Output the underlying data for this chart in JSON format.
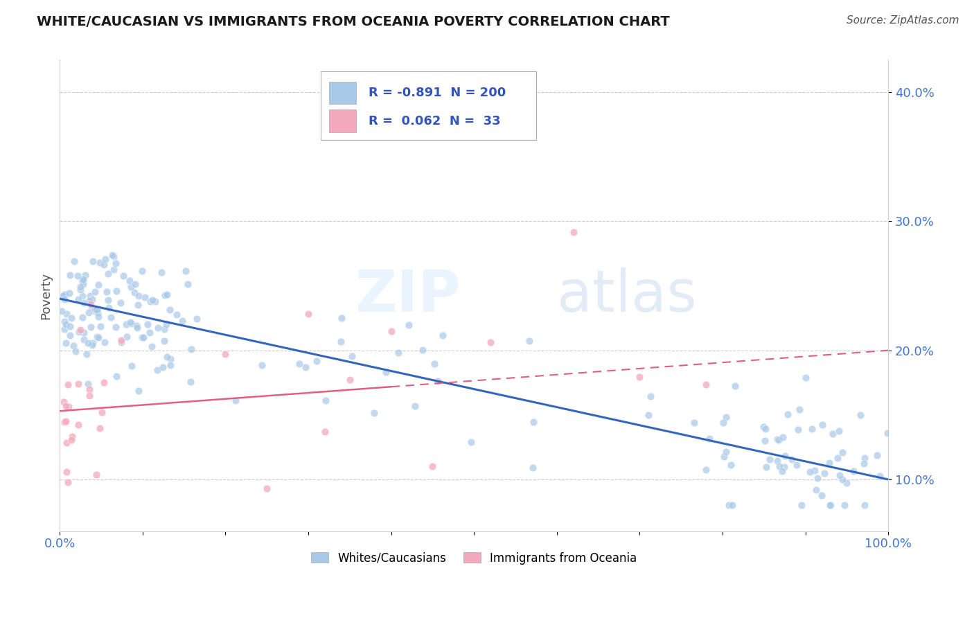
{
  "title": "WHITE/CAUCASIAN VS IMMIGRANTS FROM OCEANIA POVERTY CORRELATION CHART",
  "source": "Source: ZipAtlas.com",
  "ylabel": "Poverty",
  "y_ticks": [
    0.1,
    0.2,
    0.3,
    0.4
  ],
  "y_tick_labels": [
    "10.0%",
    "20.0%",
    "30.0%",
    "40.0%"
  ],
  "xlim": [
    0.0,
    1.0
  ],
  "ylim": [
    0.06,
    0.425
  ],
  "blue_color": "#A8C8E8",
  "pink_color": "#F4A8BC",
  "blue_line_color": "#3366BB",
  "pink_line_color": "#E06080",
  "R_blue": -0.891,
  "N_blue": 200,
  "R_pink": 0.062,
  "N_pink": 33,
  "legend_series": [
    "Whites/Caucasians",
    "Immigrants from Oceania"
  ],
  "blue_trend_y_start": 0.24,
  "blue_trend_y_end": 0.1,
  "pink_trend_y_start": 0.153,
  "pink_trend_y_end": 0.2,
  "pink_trend_dashed_start": 0.4
}
